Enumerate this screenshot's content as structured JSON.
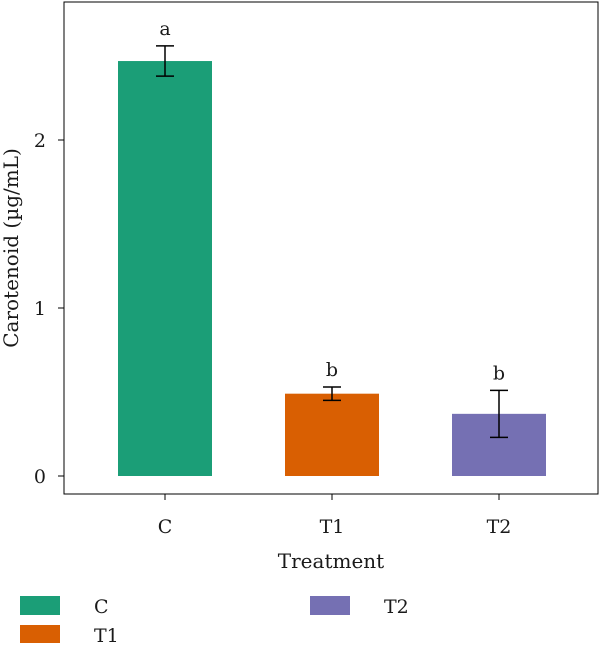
{
  "chart_data": {
    "type": "bar",
    "title": "",
    "xlabel": "Treatment",
    "ylabel": "Carotenoid (µg/mL)",
    "categories": [
      "C",
      "T1",
      "T2"
    ],
    "values": [
      2.47,
      0.49,
      0.37
    ],
    "error": [
      0.09,
      0.04,
      0.14
    ],
    "significance": [
      "a",
      "b",
      "b"
    ],
    "colors": [
      "#1b9e77",
      "#d95f02",
      "#7570b3"
    ],
    "ylim": [
      0,
      2.75
    ],
    "yticks": [
      "0",
      "1",
      "2"
    ],
    "legend": {
      "placement": "bottom",
      "items": [
        {
          "label": "C",
          "color": "#1b9e77"
        },
        {
          "label": "T1",
          "color": "#d95f02"
        },
        {
          "label": "T2",
          "color": "#7570b3"
        }
      ]
    }
  }
}
